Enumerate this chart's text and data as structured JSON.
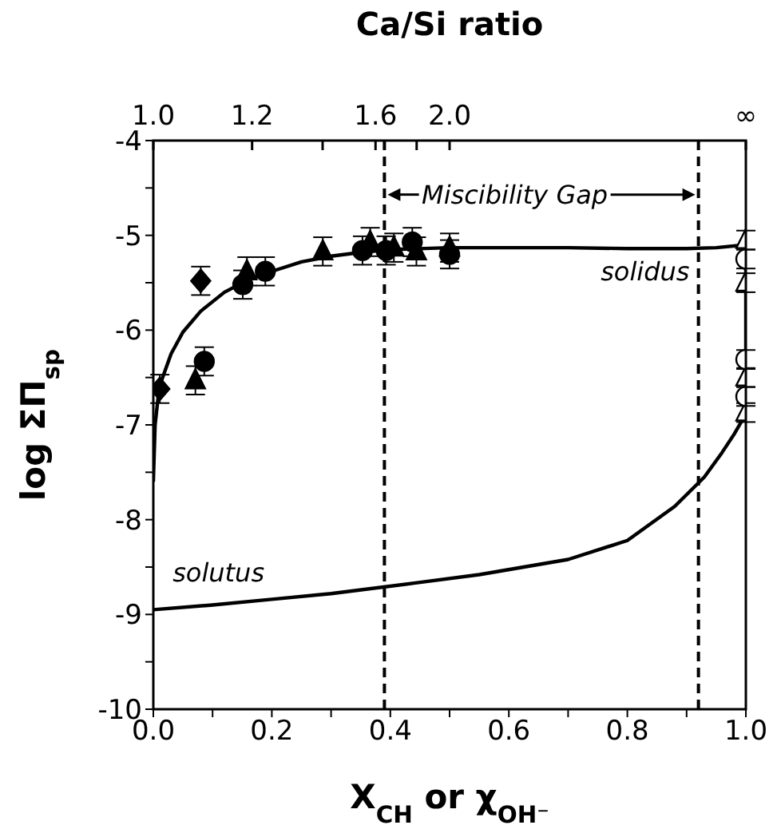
{
  "chart_data": {
    "type": "scatter",
    "xlabel": "X$_{CH}$ or χ$_{OH⁻}$",
    "ylabel": "log ΣΠ$_{sp}$",
    "x2label": "Ca/Si ratio",
    "xlim": [
      0,
      1
    ],
    "ylim": [
      -10,
      -4
    ],
    "xticks": [
      {
        "value": 0,
        "label": "0.0"
      },
      {
        "value": 0.1,
        "label": null
      },
      {
        "value": 0.2,
        "label": "0.2"
      },
      {
        "value": 0.3,
        "label": null
      },
      {
        "value": 0.4,
        "label": "0.4"
      },
      {
        "value": 0.5,
        "label": null
      },
      {
        "value": 0.6,
        "label": "0.6"
      },
      {
        "value": 0.7,
        "label": null
      },
      {
        "value": 0.8,
        "label": "0.8"
      },
      {
        "value": 0.9,
        "label": null
      },
      {
        "value": 1,
        "label": "1.0"
      }
    ],
    "yticks": [
      -10,
      {
        "value": -9.5,
        "label": null
      },
      -9,
      {
        "value": -8.5,
        "label": null
      },
      -8,
      {
        "value": -7.5,
        "label": null
      },
      -7,
      {
        "value": -6.5,
        "label": null
      },
      -6,
      {
        "value": -5.5,
        "label": null
      },
      -5,
      {
        "value": -4.5,
        "label": null
      },
      -4
    ],
    "series": [
      {
        "marker": "diamond",
        "color": "#000000",
        "x": [
          0.011,
          0.08
        ],
        "values": [
          -6.62,
          -5.48
        ],
        "errors": [
          0.15,
          0.15
        ]
      },
      {
        "marker": "triangle",
        "color": "#000000",
        "x": [
          0.071,
          0.158,
          0.286,
          0.366,
          0.406,
          0.444,
          0.5
        ],
        "values": [
          -6.53,
          -5.38,
          -5.17,
          -5.07,
          -5.13,
          -5.17,
          -5.13
        ],
        "errors": [
          0.15,
          0.15,
          0.15,
          0.15,
          0.15,
          0.15,
          0.15
        ]
      },
      {
        "marker": "circle",
        "color": "#000000",
        "x": [
          0.086,
          0.151,
          0.189,
          0.353,
          0.393,
          0.437,
          0.5
        ],
        "values": [
          -6.33,
          -5.52,
          -5.38,
          -5.16,
          -5.16,
          -5.07,
          -5.2
        ],
        "errors": [
          0.15,
          0.15,
          0.15,
          0.15,
          0.15,
          0.15,
          0.15
        ]
      },
      {
        "marker": "triangle",
        "color": "#ffffff",
        "x": [
          1,
          1,
          1,
          1
        ],
        "values": [
          -5.05,
          -5.5,
          -6.5,
          -6.87
        ],
        "errors": [
          0.1,
          0.1,
          0.1,
          0.1
        ]
      },
      {
        "marker": "circle",
        "color": "#ffffff",
        "x": [
          1,
          1,
          1
        ],
        "values": [
          -5.25,
          -6.31,
          -6.7
        ],
        "errors": [
          0.1,
          0.1,
          0.1
        ]
      },
      {
        "type": "line",
        "marker": "none",
        "color": "#000000",
        "x": [
          0,
          0.003,
          0.01,
          0.03,
          0.05,
          0.08,
          0.12,
          0.16,
          0.2,
          0.25,
          0.3,
          0.35,
          0.4,
          0.5,
          0.6,
          0.7,
          0.8,
          0.9,
          0.95,
          1.0
        ],
        "values": [
          -7.6,
          -7.0,
          -6.6,
          -6.25,
          -6.02,
          -5.8,
          -5.6,
          -5.47,
          -5.38,
          -5.28,
          -5.22,
          -5.18,
          -5.15,
          -5.13,
          -5.13,
          -5.13,
          -5.14,
          -5.14,
          -5.13,
          -5.1
        ]
      },
      {
        "type": "line",
        "marker": "none",
        "color": "#000000",
        "x": [
          0,
          0.1,
          0.2,
          0.3,
          0.44,
          0.55,
          0.7,
          0.8,
          0.88,
          0.93,
          0.96,
          0.98,
          0.993,
          1.0,
          1.0
        ],
        "values": [
          -8.95,
          -8.9,
          -8.84,
          -8.78,
          -8.67,
          -8.58,
          -8.42,
          -8.22,
          -7.86,
          -7.55,
          -7.29,
          -7.1,
          -6.96,
          -6.85,
          -5.1
        ]
      }
    ],
    "ref_lines": [
      {
        "axis": "x",
        "value": 0.39,
        "color": "#000000",
        "line_style": "dashed"
      },
      {
        "axis": "x",
        "value": 0.92,
        "color": "#000000",
        "line_style": "dashed"
      }
    ],
    "annotations": [
      "Miscibility Gap",
      "solidus",
      "solutus",
      "1.0",
      "1.2",
      "1.6",
      "2.0",
      "∞"
    ]
  }
}
